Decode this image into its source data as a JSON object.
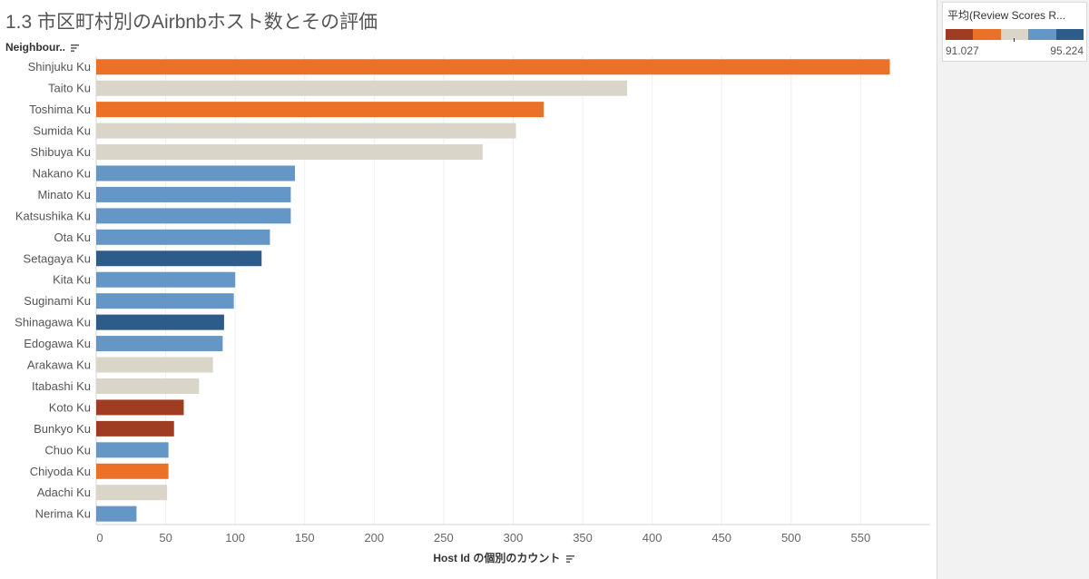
{
  "title": "1.3 市区町村別のAirbnbホスト数とその評価",
  "dimension_header": "Neighbour..",
  "legend": {
    "title": "平均(Review Scores R...",
    "min_label": "91.027",
    "max_label": "95.224",
    "ramp_colors": [
      "#9e3d22",
      "#ec7128",
      "#d9d5c9",
      "#6496c6",
      "#2d5b8a"
    ]
  },
  "chart_data": {
    "type": "bar",
    "orientation": "horizontal",
    "title": "1.3 市区町村別のAirbnbホスト数とその評価",
    "xlabel": "Host Id の個別のカウント",
    "ylabel": "Neighbour..",
    "xlim": [
      0,
      600
    ],
    "xticks": [
      0,
      50,
      100,
      150,
      200,
      250,
      300,
      350,
      400,
      450,
      500,
      550
    ],
    "grid": true,
    "categories": [
      "Shinjuku Ku",
      "Taito Ku",
      "Toshima Ku",
      "Sumida Ku",
      "Shibuya Ku",
      "Nakano Ku",
      "Minato Ku",
      "Katsushika Ku",
      "Ota Ku",
      "Setagaya Ku",
      "Kita Ku",
      "Suginami Ku",
      "Shinagawa Ku",
      "Edogawa Ku",
      "Arakawa Ku",
      "Itabashi Ku",
      "Koto Ku",
      "Bunkyo Ku",
      "Chuo Ku",
      "Chiyoda Ku",
      "Adachi Ku",
      "Nerima Ku"
    ],
    "values": [
      571,
      382,
      322,
      302,
      278,
      143,
      140,
      140,
      125,
      119,
      100,
      99,
      92,
      91,
      84,
      74,
      63,
      56,
      52,
      52,
      51,
      29
    ],
    "bar_colors": [
      "#ec7128",
      "#d9d5c9",
      "#ec7128",
      "#d9d5c9",
      "#d9d5c9",
      "#6496c6",
      "#6496c6",
      "#6496c6",
      "#6496c6",
      "#2d5b8a",
      "#6496c6",
      "#6496c6",
      "#2d5b8a",
      "#6496c6",
      "#d9d5c9",
      "#d9d5c9",
      "#9e3d22",
      "#9e3d22",
      "#6496c6",
      "#ec7128",
      "#d9d5c9",
      "#6496c6"
    ]
  }
}
